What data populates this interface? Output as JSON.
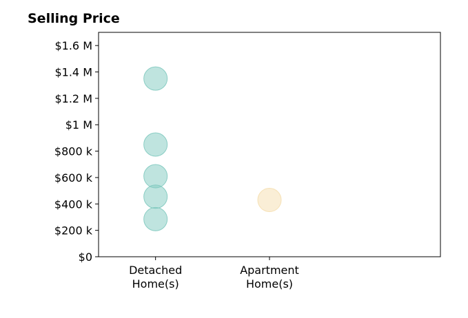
{
  "chart_data": {
    "type": "scatter",
    "title": "Selling Price",
    "xlabel": "",
    "ylabel": "",
    "categories": [
      "Detached Home(s)",
      "Apartment Home(s)"
    ],
    "category_label_lines": [
      [
        "Detached",
        "Home(s)"
      ],
      [
        "Apartment",
        "Home(s)"
      ]
    ],
    "ylim": [
      0,
      1700000
    ],
    "yticks": [
      0,
      200000,
      400000,
      600000,
      800000,
      1000000,
      1200000,
      1400000,
      1600000
    ],
    "ytick_labels": [
      "$0",
      "$200 k",
      "$400 k",
      "$600 k",
      "$800 k",
      "$1 M",
      "$1.2 M",
      "$1.4 M",
      "$1.6 M"
    ],
    "grid": false,
    "series": [
      {
        "category": "Detached Home(s)",
        "color": "#7fc9bf",
        "values": [
          1350000,
          850000,
          610000,
          455000,
          285000
        ]
      },
      {
        "category": "Apartment Home(s)",
        "color": "#f5deae",
        "values": [
          430000
        ]
      }
    ]
  }
}
